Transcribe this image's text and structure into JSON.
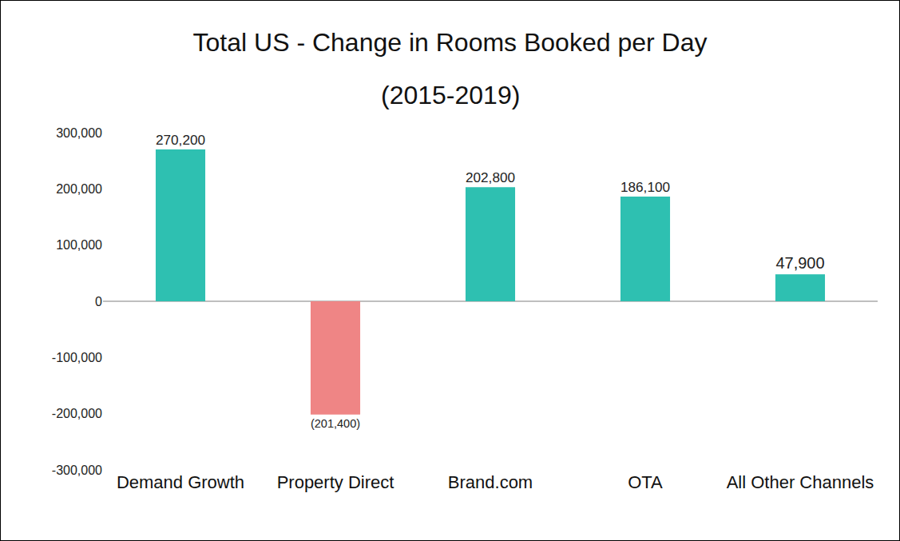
{
  "chart_data": {
    "type": "bar",
    "title": "Total US - Change in Rooms Booked per Day",
    "subtitle": "(2015-2019)",
    "categories": [
      "Demand Growth",
      "Property Direct",
      "Brand.com",
      "OTA",
      "All Other Channels"
    ],
    "values": [
      270200,
      -201400,
      202800,
      186100,
      47900
    ],
    "value_labels": [
      "270,200",
      "(201,400)",
      "202,800",
      "186,100",
      "47,900"
    ],
    "colors": [
      "#2ec0b1",
      "#ef8585",
      "#2ec0b1",
      "#2ec0b1",
      "#2ec0b1"
    ],
    "ylim": [
      -300000,
      300000
    ],
    "yticks": [
      {
        "value": -300000,
        "label": "-300,000"
      },
      {
        "value": -200000,
        "label": "-200,000"
      },
      {
        "value": -100000,
        "label": "-100,000"
      },
      0,
      {
        "value": 100000,
        "label": "100,000"
      },
      {
        "value": 200000,
        "label": "200,000"
      },
      {
        "value": 300000,
        "label": "300,000"
      }
    ],
    "grid": false,
    "data_labels": true
  }
}
